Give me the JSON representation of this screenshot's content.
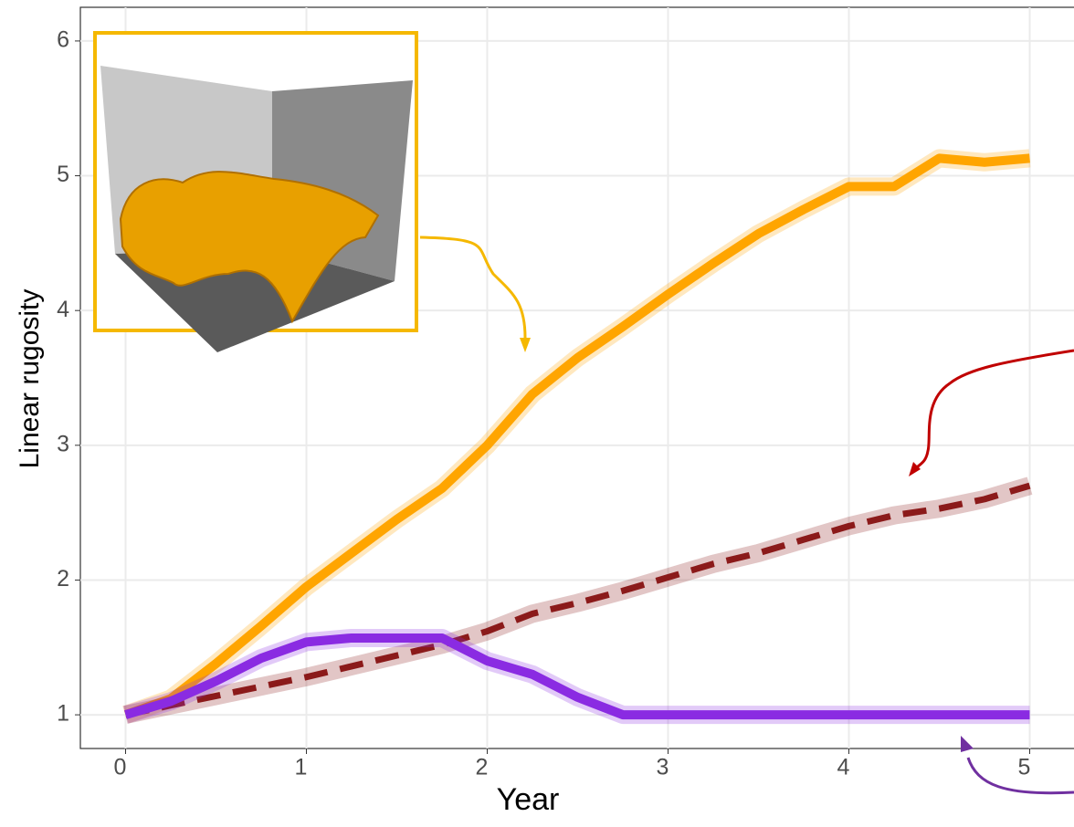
{
  "chart_data": {
    "type": "line",
    "x_label": "Year",
    "y_label": "Linear rugosity",
    "x": [
      0,
      0.25,
      0.5,
      0.75,
      1,
      1.25,
      1.5,
      1.75,
      2,
      2.25,
      2.5,
      2.75,
      3,
      3.25,
      3.5,
      3.75,
      4,
      4.25,
      4.5,
      4.75,
      5
    ],
    "series": [
      {
        "color": "#ffa500",
        "style": "solid",
        "values": [
          1.0,
          1.12,
          1.38,
          1.66,
          1.95,
          2.2,
          2.45,
          2.68,
          3.0,
          3.38,
          3.65,
          3.88,
          4.12,
          4.35,
          4.57,
          4.75,
          4.92,
          4.92,
          5.13,
          5.1,
          5.13
        ]
      },
      {
        "color": "#8b1a1a",
        "style": "dashed",
        "values": [
          1.0,
          1.07,
          1.14,
          1.21,
          1.28,
          1.36,
          1.44,
          1.52,
          1.62,
          1.75,
          1.83,
          1.92,
          2.02,
          2.12,
          2.2,
          2.3,
          2.4,
          2.48,
          2.53,
          2.6,
          2.7
        ]
      },
      {
        "color": "#8a2be2",
        "style": "solid",
        "values": [
          1.0,
          1.1,
          1.25,
          1.42,
          1.54,
          1.57,
          1.57,
          1.57,
          1.4,
          1.3,
          1.13,
          1.0,
          1.0,
          1.0,
          1.0,
          1.0,
          1.0,
          1.0,
          1.0,
          1.0,
          1.0
        ]
      }
    ],
    "xlim": [
      -0.25,
      5.25
    ],
    "ylim": [
      0.75,
      6.25
    ],
    "xticks": [
      0,
      1,
      2,
      3,
      4,
      5
    ],
    "yticks": [
      1,
      2,
      3,
      4,
      5,
      6
    ],
    "grid": true
  }
}
